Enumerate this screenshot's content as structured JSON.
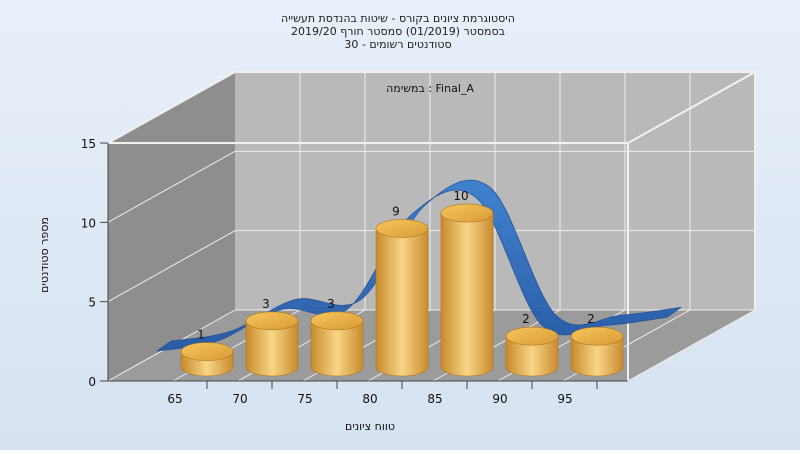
{
  "chart_data": {
    "type": "bar",
    "title_lines": [
      "היסטוגרמת ציונים בקורס - שיטות בהנדסת תעשייה",
      "בסמסטר  (01/2019)  סמסטר חורף 2019/20",
      "30 - סטודנטים רשומים"
    ],
    "assignment_label": "במשימה : Final_A",
    "xlabel": "טווח ציונים",
    "ylabel": "מספר סטודנטים",
    "categories": [
      "65",
      "70",
      "75",
      "80",
      "85",
      "90",
      "95"
    ],
    "x_ticks": [
      "65",
      "70",
      "75",
      "80",
      "85",
      "90",
      "95"
    ],
    "values": [
      1,
      3,
      3,
      9,
      10,
      2,
      2
    ],
    "y_ticks": [
      "0",
      "5",
      "10",
      "15"
    ],
    "ylim": [
      0,
      15
    ],
    "grid": true,
    "legend": "none",
    "colors": {
      "background": "#dfe9f5",
      "bar_light": "#f6cd7a",
      "bar_dark": "#c98b2e",
      "curve": "#2f6fbe",
      "back_wall": "#b8b8b8",
      "side_wall": "#8c8c8c",
      "floor": "#9a9a9a"
    }
  }
}
